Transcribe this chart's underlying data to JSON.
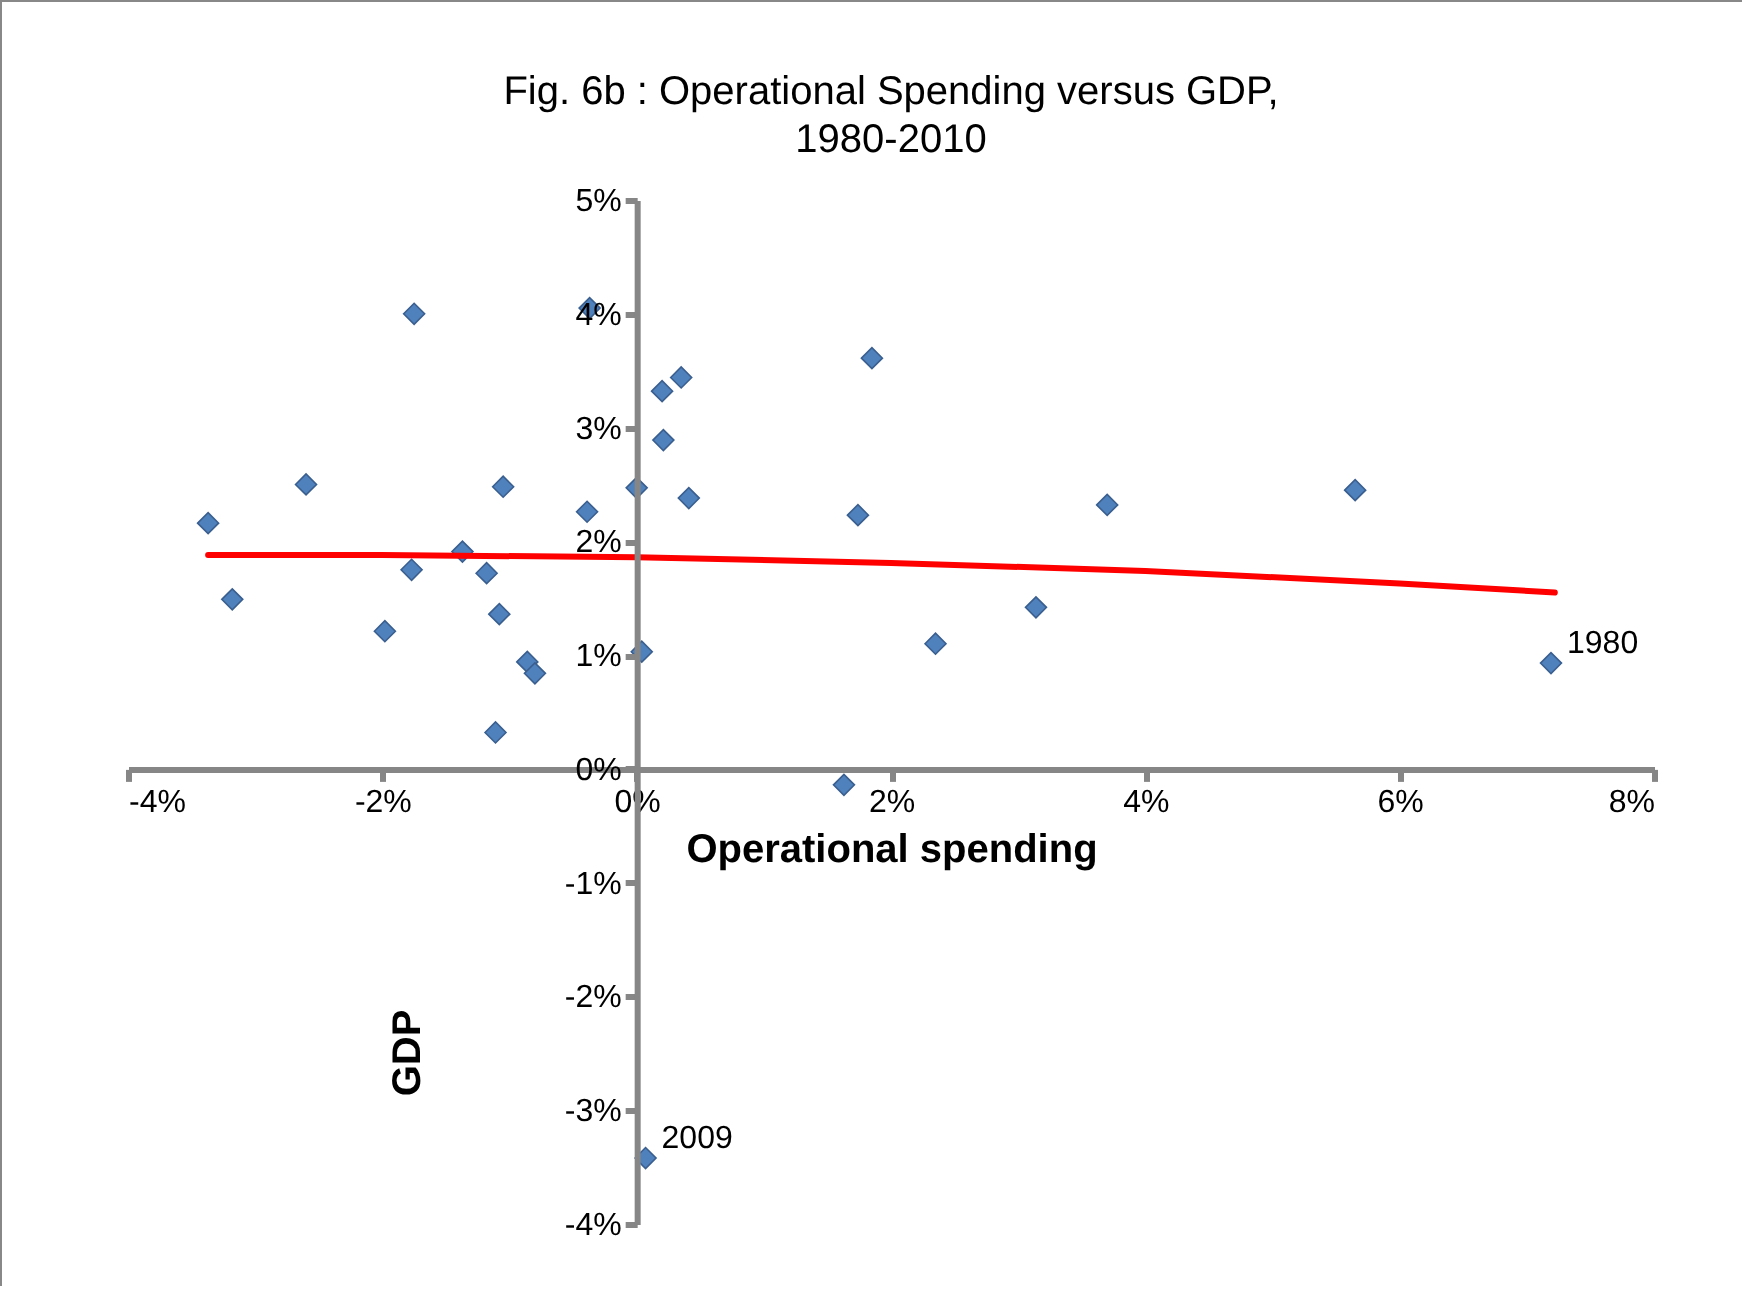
{
  "chart_data": {
    "type": "scatter",
    "title": "Fig. 6b : Operational Spending versus GDP,\n1980-2010",
    "xlabel": "Operational spending",
    "ylabel": "GDP",
    "xlim": [
      -4,
      8
    ],
    "ylim": [
      -4,
      5
    ],
    "xticks": [
      {
        "value": -4,
        "label": "-4%"
      },
      {
        "value": -2,
        "label": "-2%"
      },
      {
        "value": 0,
        "label": "0%"
      },
      {
        "value": 2,
        "label": "2%"
      },
      {
        "value": 4,
        "label": "4%"
      },
      {
        "value": 6,
        "label": "6%"
      },
      {
        "value": 8,
        "label": "8%"
      }
    ],
    "yticks": [
      {
        "value": -4,
        "label": "-4%"
      },
      {
        "value": -3,
        "label": "-3%"
      },
      {
        "value": -2,
        "label": "-2%"
      },
      {
        "value": -1,
        "label": "-1%"
      },
      {
        "value": 0,
        "label": "0%"
      },
      {
        "value": 1,
        "label": "1%"
      },
      {
        "value": 2,
        "label": "2%"
      },
      {
        "value": 3,
        "label": "3%"
      },
      {
        "value": 4,
        "label": "4%"
      },
      {
        "value": 5,
        "label": "5%"
      }
    ],
    "grid": false,
    "series": [
      {
        "marker": "diamond",
        "color": "#4f81bd",
        "x": [
          -3.37,
          -3.18,
          -2.6,
          -1.98,
          -1.75,
          -1.77,
          -1.37,
          -1.18,
          -1.11,
          -1.08,
          -1.05,
          -0.86,
          -0.8,
          -0.39,
          -0.37,
          0.0,
          0.04,
          0.2,
          0.35,
          0.21,
          0.41,
          1.85,
          1.74,
          1.63,
          2.35,
          3.14,
          3.7,
          5.65,
          7.19,
          0.07
        ],
        "values": [
          2.16,
          1.49,
          2.5,
          1.21,
          4.0,
          1.75,
          1.91,
          1.72,
          0.32,
          1.36,
          2.48,
          0.94,
          0.84,
          2.26,
          4.05,
          2.47,
          1.03,
          3.32,
          3.44,
          2.89,
          2.38,
          3.61,
          2.23,
          -0.14,
          1.1,
          1.42,
          2.32,
          2.45,
          0.93,
          -3.42
        ]
      },
      {
        "type": "line",
        "color": "#ff0000",
        "x": [
          -3.37,
          -2,
          0,
          2,
          4,
          6,
          7.22
        ],
        "values": [
          1.88,
          1.88,
          1.86,
          1.81,
          1.74,
          1.63,
          1.55
        ]
      }
    ],
    "annotations": [
      {
        "text": "1980",
        "x": 7.19,
        "y": 0.93
      },
      {
        "text": "2009",
        "x": 0.07,
        "y": -3.42
      }
    ]
  }
}
